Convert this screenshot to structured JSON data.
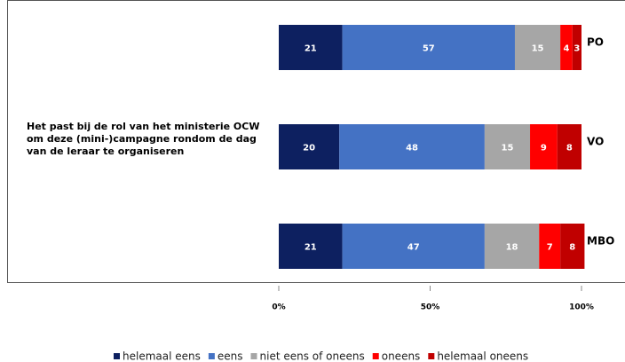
{
  "chart_data": {
    "type": "stacked-bar-horizontal",
    "row_label": "Het past bij de rol van het ministerie OCW om deze (mini-)campagne rondom de dag van de leraar te organiseren",
    "categories": [
      "PO",
      "VO",
      "MBO"
    ],
    "series": [
      {
        "name": "helemaal eens",
        "color": "#0d2060",
        "values": [
          21,
          20,
          21
        ]
      },
      {
        "name": "eens",
        "color": "#4472c4",
        "values": [
          57,
          48,
          47
        ]
      },
      {
        "name": "niet eens of oneens",
        "color": "#a6a6a6",
        "values": [
          15,
          15,
          18
        ]
      },
      {
        "name": "oneens",
        "color": "#ff0000",
        "values": [
          4,
          9,
          7
        ]
      },
      {
        "name": "helemaal oneens",
        "color": "#c00000",
        "values": [
          3,
          8,
          8
        ]
      }
    ],
    "xlim": [
      0,
      100
    ],
    "xticks": [
      {
        "value": 0,
        "label": "0%"
      },
      {
        "value": 50,
        "label": "50%"
      },
      {
        "value": 100,
        "label": "100%"
      }
    ]
  }
}
